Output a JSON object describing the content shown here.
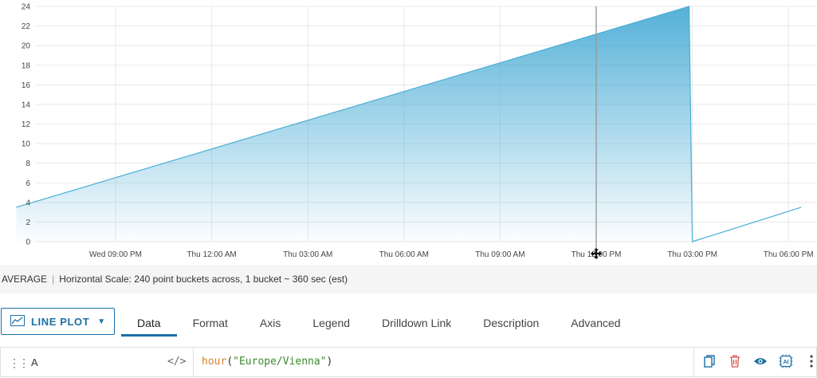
{
  "chart_data": {
    "type": "area",
    "title": "",
    "xlabel": "",
    "ylabel": "",
    "ylim": [
      0,
      24
    ],
    "y_ticks": [
      "0",
      "2",
      "4",
      "6",
      "8",
      "10",
      "12",
      "14",
      "16",
      "18",
      "20",
      "22",
      "24"
    ],
    "x_ticks": [
      "Wed 09:00 PM",
      "Thu 12:00 AM",
      "Thu 03:00 AM",
      "Thu 06:00 AM",
      "Thu 09:00 AM",
      "Thu 12:00 PM",
      "Thu 03:00 PM",
      "Thu 06:00 PM"
    ],
    "x_hours_from_wed_9pm": [
      0,
      3,
      6,
      9,
      12,
      15,
      18,
      21
    ],
    "series": [
      {
        "color": "#4badd6",
        "points": [
          [
            -3.1,
            3.5
          ],
          [
            17.9,
            24
          ],
          [
            18.0,
            0
          ],
          [
            21.4,
            3.5
          ]
        ]
      }
    ],
    "cursor_hour": 15,
    "grid": true
  },
  "status": {
    "aggregation": "AVERAGE",
    "separator": "|",
    "scale_text": "Horizontal Scale: 240 point buckets across, 1 bucket ~ 360 sec (est)"
  },
  "plot_type": {
    "label": "LINE PLOT",
    "icon": "line-chart-icon"
  },
  "tabs": [
    "Data",
    "Format",
    "Axis",
    "Legend",
    "Drilldown Link",
    "Description",
    "Advanced"
  ],
  "active_tab": "Data",
  "query": {
    "label": "A",
    "code_toggle": "</>",
    "function": "hour",
    "open": "(",
    "argument": "\"Europe/Vienna\"",
    "close": ")"
  },
  "actions": {
    "ai_label": "AI",
    "icons": [
      "copy-icon",
      "delete-icon",
      "eye-icon",
      "ai-icon",
      "more-vertical-icon"
    ]
  }
}
